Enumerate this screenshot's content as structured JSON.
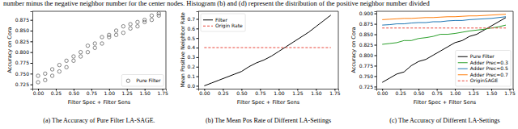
{
  "caption": "number minus the negative neighbor number for the center nodes. Histogram (b) and (d) represent the distribution of the positive neighbor number divided",
  "chart_data": [
    {
      "type": "scatter",
      "title": "(a) The Accuracy of Pure Filter LA-SAGE.",
      "xlabel": "Filter Spec + Filter Sens",
      "ylabel": "Accuracy on Cora",
      "x": [
        0,
        0,
        0.1,
        0.1,
        0.2,
        0.2,
        0.3,
        0.3,
        0.4,
        0.4,
        0.5,
        0.5,
        0.6,
        0.6,
        0.7,
        0.7,
        0.8,
        0.8,
        0.9,
        0.9,
        1.0,
        1.0,
        1.1,
        1.1,
        1.2,
        1.2,
        1.3,
        1.3,
        1.4,
        1.4,
        1.5,
        1.5,
        1.6,
        1.6,
        1.7,
        1.7
      ],
      "series": [
        {
          "name": "Pure Filter",
          "color": "#555555",
          "marker": "circle",
          "values": [
            0.73,
            0.745,
            0.735,
            0.75,
            0.745,
            0.76,
            0.755,
            0.77,
            0.765,
            0.78,
            0.78,
            0.79,
            0.79,
            0.8,
            0.8,
            0.815,
            0.81,
            0.82,
            0.82,
            0.835,
            0.835,
            0.84,
            0.84,
            0.85,
            0.845,
            0.86,
            0.855,
            0.865,
            0.86,
            0.87,
            0.87,
            0.875,
            0.875,
            0.885,
            0.885,
            0.89
          ]
        }
      ],
      "xlim": [
        -0.08,
        1.8
      ],
      "xticks": [
        {
          "value": 0,
          "label": "0.00"
        },
        0.25,
        {
          "value": 0.5,
          "label": "0.50"
        },
        0.75,
        {
          "value": 1,
          "label": "1.00"
        },
        1.25,
        {
          "value": 1.5,
          "label": "1.50"
        },
        1.75
      ],
      "ylim": [
        0.715,
        0.895
      ],
      "yticks": [
        0.725,
        {
          "value": 0.75,
          "label": "0.750"
        },
        0.775,
        {
          "value": 0.8,
          "label": "0.800"
        },
        0.825,
        {
          "value": 0.85,
          "label": "0.850"
        },
        0.875
      ],
      "grid": false,
      "legend": "lower right"
    },
    {
      "type": "line",
      "title": "(b) The Mean Pos Rate of Different LA-Settings",
      "xlabel": "Filter Spec + Filter Sens",
      "ylabel": "Mean Positive Neighbor Rate",
      "x": [
        0,
        0.1,
        0.2,
        0.3,
        0.4,
        0.5,
        0.6,
        0.7,
        0.8,
        0.9,
        1.0,
        1.1,
        1.2,
        1.3,
        1.4,
        1.5,
        1.6,
        1.7
      ],
      "series": [
        {
          "name": "Filter",
          "color": "#000000",
          "line_style": "solid",
          "values": [
            0.0,
            0.03,
            0.06,
            0.09,
            0.12,
            0.15,
            0.2,
            0.24,
            0.27,
            0.31,
            0.36,
            0.41,
            0.46,
            0.51,
            0.56,
            0.62,
            0.68,
            0.74
          ]
        },
        {
          "name": "Origin Rate",
          "color": "#e8463a",
          "line_style": "dashed",
          "values": [
            0.4,
            0.4,
            0.4,
            0.4,
            0.4,
            0.4,
            0.4,
            0.4,
            0.4,
            0.4,
            0.4,
            0.4,
            0.4,
            0.4,
            0.4,
            0.4,
            0.4,
            0.4
          ]
        }
      ],
      "xlim": [
        -0.08,
        1.8
      ],
      "xticks": [
        {
          "value": 0,
          "label": "0.00"
        },
        0.25,
        {
          "value": 0.5,
          "label": "0.50"
        },
        0.75,
        {
          "value": 1,
          "label": "1.00"
        },
        1.25,
        {
          "value": 1.5,
          "label": "1.50"
        },
        1.75
      ],
      "ylim": [
        -0.03,
        0.78
      ],
      "yticks": [
        {
          "value": 0,
          "label": "0.0"
        },
        0.1,
        0.2,
        0.3,
        0.4,
        0.5,
        0.6,
        0.7
      ],
      "grid": false,
      "legend": "upper left"
    },
    {
      "type": "line",
      "title": "(c) The Accuracy of Different LA-Settings",
      "xlabel": "Filter Spec + Filter Sens",
      "ylabel": "Accuracy on Cora",
      "x": [
        0,
        0.1,
        0.2,
        0.3,
        0.4,
        0.5,
        0.6,
        0.7,
        0.8,
        0.9,
        1.0,
        1.1,
        1.2,
        1.3,
        1.4,
        1.5,
        1.6,
        1.7
      ],
      "series": [
        {
          "name": "Pure Filter",
          "color": "#000000",
          "line_style": "solid",
          "values": [
            0.735,
            0.745,
            0.755,
            0.76,
            0.775,
            0.785,
            0.79,
            0.8,
            0.81,
            0.82,
            0.83,
            0.835,
            0.845,
            0.85,
            0.86,
            0.87,
            0.88,
            0.89
          ]
        },
        {
          "name": "Adder Prec=0.3",
          "color": "#2ca02c",
          "line_style": "solid",
          "values": [
            0.826,
            0.828,
            0.83,
            0.835,
            0.835,
            0.84,
            0.842,
            0.845,
            0.85,
            0.85,
            0.852,
            0.855,
            0.858,
            0.86,
            0.862,
            0.865,
            0.868,
            0.872
          ]
        },
        {
          "name": "Adder Prec=0.5",
          "color": "#1f77b4",
          "line_style": "solid",
          "values": [
            0.872,
            0.873,
            0.875,
            0.875,
            0.877,
            0.878,
            0.878,
            0.88,
            0.88,
            0.882,
            0.883,
            0.883,
            0.885,
            0.886,
            0.887,
            0.888,
            0.89,
            0.892
          ]
        },
        {
          "name": "Adder Prec=0.7",
          "color": "#ff7f0e",
          "line_style": "solid",
          "values": [
            0.885,
            0.886,
            0.887,
            0.888,
            0.888,
            0.889,
            0.89,
            0.89,
            0.891,
            0.892,
            0.892,
            0.893,
            0.894,
            0.894,
            0.895,
            0.896,
            0.897,
            0.898
          ]
        },
        {
          "name": "OriginSAGE",
          "color": "#e8463a",
          "line_style": "dashed",
          "values": [
            0.865,
            0.865,
            0.865,
            0.865,
            0.865,
            0.865,
            0.865,
            0.865,
            0.865,
            0.865,
            0.865,
            0.865,
            0.865,
            0.865,
            0.865,
            0.865,
            0.865,
            0.865
          ]
        }
      ],
      "xlim": [
        -0.08,
        1.8
      ],
      "xticks": [
        {
          "value": 0,
          "label": "0.00"
        },
        0.25,
        {
          "value": 0.5,
          "label": "0.50"
        },
        0.75,
        {
          "value": 1,
          "label": "1.00"
        },
        1.25,
        {
          "value": 1.5,
          "label": "1.50"
        },
        1.75
      ],
      "ylim": [
        0.72,
        0.905
      ],
      "yticks": [
        0.725,
        {
          "value": 0.75,
          "label": "0.750"
        },
        0.775,
        {
          "value": 0.8,
          "label": "0.800"
        },
        0.825,
        {
          "value": 0.85,
          "label": "0.850"
        },
        0.875,
        {
          "value": 0.9,
          "label": "0.900"
        }
      ],
      "grid": false,
      "legend": "lower right"
    }
  ]
}
